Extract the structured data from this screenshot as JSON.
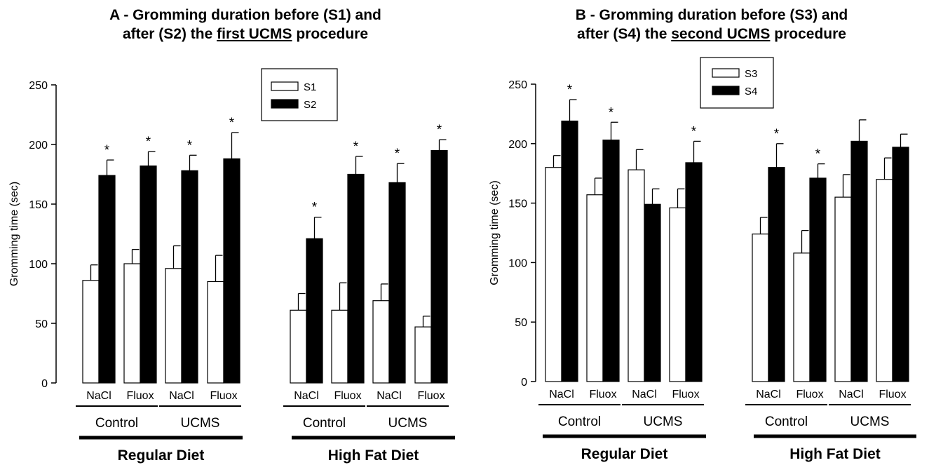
{
  "colors": {
    "s_before": "#ffffff",
    "s_after": "#000000",
    "axis": "#000000"
  },
  "panels": [
    {
      "title_line1": "A - Gromming duration before (S1) and",
      "title_line2_pre": "after (S2) the ",
      "title_line2_u": "first UCMS",
      "title_line2_post": " procedure"
    },
    {
      "title_line1": "B - Gromming duration before (S3) and",
      "title_line2_pre": "after (S4) the ",
      "title_line2_u": "second UCMS",
      "title_line2_post": " procedure"
    }
  ],
  "chart_data": [
    {
      "type": "bar",
      "title": "A - Gromming duration before (S1) and after (S2) the first UCMS procedure",
      "ylabel": "Gromming time (sec)",
      "ylim": [
        0,
        250
      ],
      "yticks": [
        0,
        50,
        100,
        150,
        200,
        250
      ],
      "categories": [
        "NaCl",
        "Fluox",
        "NaCl",
        "Fluox",
        "NaCl",
        "Fluox",
        "NaCl",
        "Fluox"
      ],
      "group_labels": [
        "Control",
        "UCMS",
        "Control",
        "UCMS"
      ],
      "diet_labels": [
        "Regular Diet",
        "High Fat Diet"
      ],
      "series": [
        {
          "name": "S1",
          "values": [
            86,
            100,
            96,
            85,
            61,
            61,
            69,
            47
          ],
          "errors": [
            13,
            12,
            19,
            22,
            14,
            23,
            14,
            9
          ]
        },
        {
          "name": "S2",
          "values": [
            174,
            182,
            178,
            188,
            121,
            175,
            168,
            195
          ],
          "errors": [
            13,
            12,
            13,
            22,
            18,
            15,
            16,
            9
          ]
        }
      ],
      "significance": [
        [
          false,
          false,
          false,
          false,
          false,
          false,
          false,
          false
        ],
        [
          true,
          true,
          true,
          true,
          true,
          true,
          true,
          true
        ]
      ],
      "significance_marker": "*",
      "legend": "top-center",
      "grid": false
    },
    {
      "type": "bar",
      "title": "B - Gromming duration before (S3) and after (S4) the second UCMS procedure",
      "ylabel": "Gromming time (sec)",
      "ylim": [
        0,
        250
      ],
      "yticks": [
        0,
        50,
        100,
        150,
        200,
        250
      ],
      "categories": [
        "NaCl",
        "Fluox",
        "NaCl",
        "Fluox",
        "NaCl",
        "Fluox",
        "NaCl",
        "Fluox"
      ],
      "group_labels": [
        "Control",
        "UCMS",
        "Control",
        "UCMS"
      ],
      "diet_labels": [
        "Regular Diet",
        "High Fat Diet"
      ],
      "series": [
        {
          "name": "S3",
          "values": [
            180,
            157,
            178,
            146,
            124,
            108,
            155,
            170
          ],
          "errors": [
            10,
            14,
            17,
            16,
            14,
            19,
            19,
            18
          ]
        },
        {
          "name": "S4",
          "values": [
            219,
            203,
            149,
            184,
            180,
            171,
            202,
            197
          ],
          "errors": [
            18,
            15,
            13,
            18,
            20,
            12,
            18,
            11
          ]
        }
      ],
      "significance": [
        [
          false,
          false,
          false,
          false,
          false,
          false,
          false,
          false
        ],
        [
          true,
          true,
          false,
          true,
          true,
          true,
          false,
          false
        ]
      ],
      "significance_marker": "*",
      "legend": "top-left",
      "grid": false
    }
  ]
}
